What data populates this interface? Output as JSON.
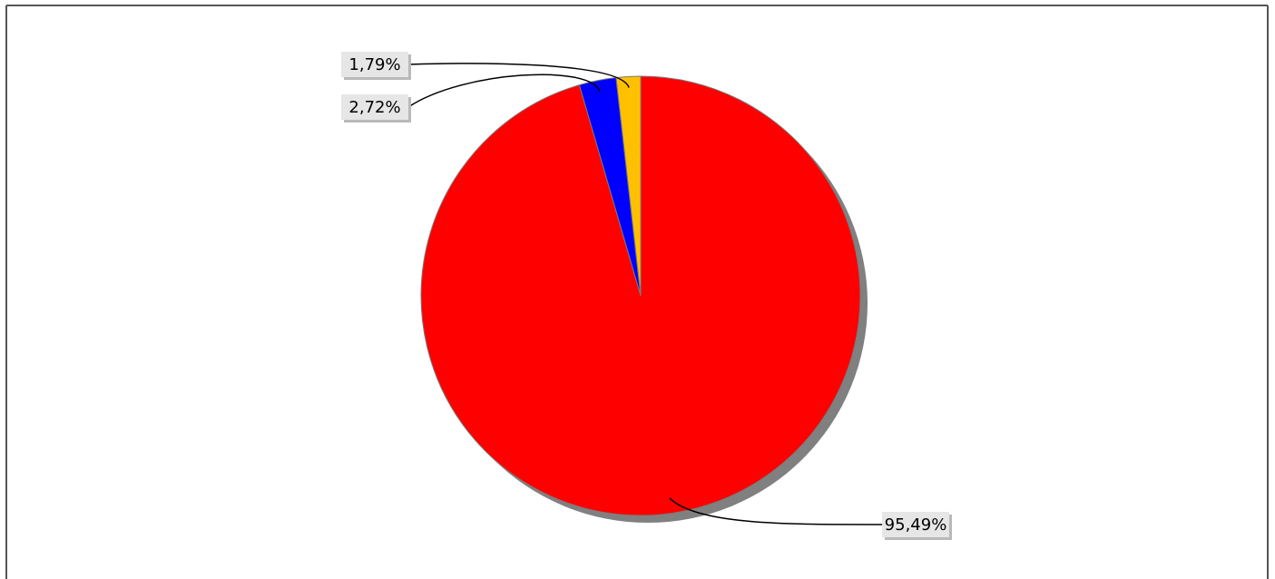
{
  "chart_data": {
    "type": "pie",
    "title": "",
    "slices": [
      {
        "label": "1,79%",
        "value": 1.79,
        "color": "#ffc000"
      },
      {
        "label": "2,72%",
        "value": 2.72,
        "color": "#0000ff"
      },
      {
        "label": "95,49%",
        "value": 95.49,
        "color": "#ff0000"
      }
    ],
    "start_angle_deg": 0,
    "direction": "counterclockwise",
    "legend": "none",
    "shadow": true
  }
}
